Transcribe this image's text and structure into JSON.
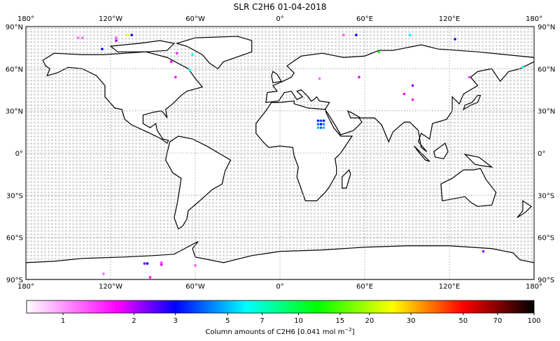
{
  "title": "SLR C2H6 01-04-2018",
  "map": {
    "projection": "equirectangular",
    "lon_ticks": [
      "180°",
      "120°W",
      "60°W",
      "0°",
      "60°E",
      "120°E",
      "180°"
    ],
    "lon_tick_values": [
      -180,
      -120,
      -60,
      0,
      60,
      120,
      180
    ],
    "lat_ticks": [
      "90°N",
      "60°N",
      "30°N",
      "0°",
      "30°S",
      "60°S",
      "90°S"
    ],
    "lat_tick_values": [
      90,
      60,
      30,
      0,
      -30,
      -60,
      -90
    ],
    "gridlines": true,
    "no_data_marker_color": "#d3d3d3",
    "coastline_color": "#000000"
  },
  "colorbar": {
    "scale": "log",
    "range": [
      0.7,
      100
    ],
    "tick_labels": [
      "1",
      "2",
      "3",
      "5",
      "7",
      "10",
      "15",
      "20",
      "30",
      "50",
      "70",
      "100"
    ],
    "tick_values": [
      1,
      2,
      3,
      5,
      7,
      10,
      15,
      20,
      30,
      50,
      70,
      100
    ],
    "label": "Column amounts of C2H6 [0.041 mol m",
    "label_sup": "−2",
    "label_end": "]",
    "colormap": [
      {
        "value": 0.7,
        "color": "#ffffff"
      },
      {
        "value": 1.7,
        "color": "#ff00ff"
      },
      {
        "value": 3,
        "color": "#0000ff"
      },
      {
        "value": 6,
        "color": "#00ffff"
      },
      {
        "value": 12,
        "color": "#00ff00"
      },
      {
        "value": 25,
        "color": "#ffff00"
      },
      {
        "value": 50,
        "color": "#ff0000"
      },
      {
        "value": 100,
        "color": "#000000"
      }
    ]
  },
  "observations": [
    {
      "lon": -143,
      "lat": 82,
      "value": 1.2
    },
    {
      "lon": -140,
      "lat": 82,
      "value": 1.2
    },
    {
      "lon": -116,
      "lat": 82,
      "value": 1.3
    },
    {
      "lon": -108,
      "lat": 84,
      "value": 25
    },
    {
      "lon": -105,
      "lat": 84,
      "value": 3
    },
    {
      "lon": -116,
      "lat": 80,
      "value": 2.2
    },
    {
      "lon": -126,
      "lat": 74,
      "value": 3
    },
    {
      "lon": -73,
      "lat": 71,
      "value": 1.5
    },
    {
      "lon": -77,
      "lat": 65,
      "value": 1.8
    },
    {
      "lon": -62,
      "lat": 70,
      "value": 6
    },
    {
      "lon": -64,
      "lat": 59,
      "value": 6
    },
    {
      "lon": -74,
      "lat": 54,
      "value": 1.7
    },
    {
      "lon": 45,
      "lat": 84,
      "value": 1.3
    },
    {
      "lon": 54,
      "lat": 84,
      "value": 3
    },
    {
      "lon": 92,
      "lat": 84,
      "value": 6
    },
    {
      "lon": 124,
      "lat": 81,
      "value": 3
    },
    {
      "lon": 70,
      "lat": 72,
      "value": 12
    },
    {
      "lon": 56,
      "lat": 54,
      "value": 1.8
    },
    {
      "lon": 28,
      "lat": 53,
      "value": 1.2
    },
    {
      "lon": 94,
      "lat": 48,
      "value": 2.2
    },
    {
      "lon": 88,
      "lat": 42,
      "value": 1.8
    },
    {
      "lon": 94,
      "lat": 38,
      "value": 1.6
    },
    {
      "lon": 27,
      "lat": 23,
      "value": 3
    },
    {
      "lon": 29,
      "lat": 23,
      "value": 3.5
    },
    {
      "lon": 31,
      "lat": 23,
      "value": 3
    },
    {
      "lon": 27,
      "lat": 20.5,
      "value": 4
    },
    {
      "lon": 29,
      "lat": 20.5,
      "value": 3
    },
    {
      "lon": 31,
      "lat": 20.5,
      "value": 4.5
    },
    {
      "lon": 27,
      "lat": 18,
      "value": 5
    },
    {
      "lon": 29,
      "lat": 18,
      "value": 4
    },
    {
      "lon": 31,
      "lat": 18,
      "value": 5
    },
    {
      "lon": 134,
      "lat": 54,
      "value": 1.3
    },
    {
      "lon": 172,
      "lat": 61,
      "value": 6
    },
    {
      "lon": -94,
      "lat": -78.6,
      "value": 3
    },
    {
      "lon": -96,
      "lat": -78.6,
      "value": 2.2
    },
    {
      "lon": -84,
      "lat": -78,
      "value": 1.4
    },
    {
      "lon": -84,
      "lat": -79.5,
      "value": 1.8
    },
    {
      "lon": -60,
      "lat": -80,
      "value": 1.3
    },
    {
      "lon": -92,
      "lat": -88.5,
      "value": 1.7
    },
    {
      "lon": -125,
      "lat": -86,
      "value": 1.2
    },
    {
      "lon": 144,
      "lat": -70,
      "value": 2.2
    }
  ]
}
